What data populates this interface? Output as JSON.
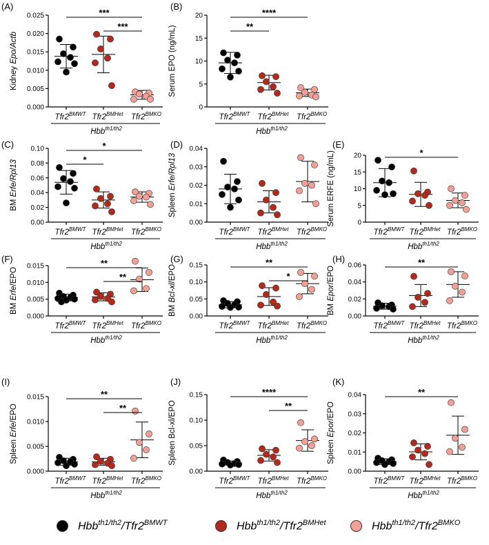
{
  "group_colors": [
    "#000000",
    "#b22a1c",
    "#f2a095"
  ],
  "chart_data": [
    {
      "panel": "A",
      "type": "scatter",
      "ylabel": "Kidney Epo/Actb",
      "ylabel_plain": "Kidney ",
      "ylabel_italic": "Epo/Actb",
      "ylabel_rest": "",
      "ylim": [
        0,
        0.025
      ],
      "yticks": [
        "0.000",
        "0.005",
        "0.010",
        "0.015",
        "0.020",
        "0.025"
      ],
      "groups": [
        {
          "name": "Tfr2BMWT",
          "mean": 0.0138,
          "sd": 0.0032,
          "points": [
            0.0185,
            0.0163,
            0.0145,
            0.0135,
            0.0123,
            0.0118,
            0.0095
          ]
        },
        {
          "name": "Tfr2BMHet",
          "mean": 0.0143,
          "sd": 0.005,
          "points": [
            0.0198,
            0.0185,
            0.0158,
            0.0133,
            0.012,
            0.0058
          ]
        },
        {
          "name": "Tfr2BMKO",
          "mean": 0.0033,
          "sd": 0.0012,
          "points": [
            0.0041,
            0.0038,
            0.0035,
            0.0029,
            0.0021,
            0.0021
          ]
        }
      ],
      "sig": [
        {
          "label": "***",
          "from": 0,
          "to": 2,
          "level": 0
        },
        {
          "label": "***",
          "from": 1,
          "to": 2,
          "level": 1
        }
      ]
    },
    {
      "panel": "B",
      "type": "scatter",
      "ylabel": "Serum EPO (ng/mL)",
      "ylabel_plain": "Serum EPO (ng/mL)",
      "ylabel_italic": "",
      "ylabel_rest": "",
      "ylim": [
        0,
        20
      ],
      "yticks": [
        "0",
        "5",
        "10",
        "15",
        "20"
      ],
      "groups": [
        {
          "name": "Tfr2BMWT",
          "mean": 9.6,
          "sd": 2.3,
          "points": [
            11.8,
            11.3,
            10.2,
            9.6,
            8.3,
            7.8,
            6.5
          ]
        },
        {
          "name": "Tfr2BMHet",
          "mean": 5.3,
          "sd": 1.6,
          "points": [
            6.8,
            6.6,
            5.5,
            4.4,
            3.8,
            3.0
          ]
        },
        {
          "name": "Tfr2BMKO",
          "mean": 3.1,
          "sd": 0.8,
          "points": [
            4.2,
            3.8,
            3.2,
            2.6,
            2.4,
            2.2
          ]
        }
      ],
      "sig": [
        {
          "label": "****",
          "from": 0,
          "to": 2,
          "level": 0
        },
        {
          "label": "**",
          "from": 0,
          "to": 1,
          "level": 1
        }
      ]
    },
    {
      "panel": "C",
      "type": "scatter",
      "ylabel": "BM Erfe/Rpl13",
      "ylabel_plain": "BM ",
      "ylabel_italic": "Erfe/Rpl13",
      "ylabel_rest": "",
      "ylim": [
        0,
        0.1
      ],
      "yticks": [
        "0.00",
        "0.02",
        "0.04",
        "0.06",
        "0.08",
        "0.10"
      ],
      "groups": [
        {
          "name": "Tfr2BMWT",
          "mean": 0.054,
          "sd": 0.016,
          "points": [
            0.074,
            0.066,
            0.059,
            0.055,
            0.048,
            0.046,
            0.026
          ]
        },
        {
          "name": "Tfr2BMHet",
          "mean": 0.03,
          "sd": 0.011,
          "points": [
            0.045,
            0.035,
            0.032,
            0.025,
            0.022,
            0.014
          ]
        },
        {
          "name": "Tfr2BMKO",
          "mean": 0.034,
          "sd": 0.007,
          "points": [
            0.041,
            0.039,
            0.035,
            0.034,
            0.029,
            0.024
          ]
        }
      ],
      "sig": [
        {
          "label": "*",
          "from": 0,
          "to": 2,
          "level": 0
        },
        {
          "label": "*",
          "from": 0,
          "to": 1,
          "level": 1
        }
      ]
    },
    {
      "panel": "D",
      "type": "scatter",
      "ylabel": "Spleen Erfe/Rpl13",
      "ylabel_plain": "Spleen ",
      "ylabel_italic": "Erfe/Rpl13",
      "ylabel_rest": "",
      "ylim": [
        0,
        0.04
      ],
      "yticks": [
        "0.00",
        "0.01",
        "0.02",
        "0.03",
        "0.04"
      ],
      "groups": [
        {
          "name": "Tfr2BMWT",
          "mean": 0.018,
          "sd": 0.008,
          "points": [
            0.033,
            0.022,
            0.019,
            0.018,
            0.015,
            0.012,
            0.008
          ]
        },
        {
          "name": "Tfr2BMHet",
          "mean": 0.011,
          "sd": 0.006,
          "points": [
            0.021,
            0.016,
            0.012,
            0.008,
            0.005,
            0.004
          ]
        },
        {
          "name": "Tfr2BMKO",
          "mean": 0.022,
          "sd": 0.011,
          "points": [
            0.035,
            0.031,
            0.021,
            0.02,
            0.017,
            0.01
          ]
        }
      ],
      "sig": []
    },
    {
      "panel": "E",
      "type": "scatter",
      "ylabel": "Serum ERFE (ng/mL)",
      "ylabel_plain": "Serum ERFE (ng/mL)",
      "ylabel_italic": "",
      "ylabel_rest": "",
      "ylim": [
        0,
        20
      ],
      "yticks": [
        "0",
        "5",
        "10",
        "15",
        "20"
      ],
      "groups": [
        {
          "name": "Tfr2BMWT",
          "mean": 11.8,
          "sd": 4.2,
          "points": [
            18.5,
            16.5,
            12.3,
            11.8,
            9.5,
            8.5,
            8.2
          ]
        },
        {
          "name": "Tfr2BMHet",
          "mean": 8.3,
          "sd": 3.6,
          "points": [
            15.3,
            9.0,
            8.5,
            8.0,
            6.3,
            5.0
          ]
        },
        {
          "name": "Tfr2BMKO",
          "mean": 6.5,
          "sd": 2.2,
          "points": [
            10.0,
            8.0,
            6.5,
            5.8,
            5.0,
            3.8
          ]
        }
      ],
      "sig": [
        {
          "label": "*",
          "from": 0,
          "to": 2,
          "level": 0
        }
      ]
    },
    {
      "panel": "F",
      "type": "scatter",
      "ylabel": "BM Erfe/EPO",
      "ylabel_plain": "BM ",
      "ylabel_italic": "Erfe",
      "ylabel_rest": "/EPO",
      "ylim": [
        0,
        0.015
      ],
      "yticks": [
        "0.000",
        "0.005",
        "0.010",
        "0.015"
      ],
      "groups": [
        {
          "name": "Tfr2BMWT",
          "mean": 0.0055,
          "sd": 0.001,
          "points": [
            0.0068,
            0.0062,
            0.0058,
            0.0055,
            0.0052,
            0.005,
            0.0047,
            0.0042
          ]
        },
        {
          "name": "Tfr2BMHet",
          "mean": 0.0057,
          "sd": 0.0012,
          "points": [
            0.0071,
            0.0065,
            0.0058,
            0.0052,
            0.0048,
            0.0042
          ]
        },
        {
          "name": "Tfr2BMKO",
          "mean": 0.0108,
          "sd": 0.0035,
          "points": [
            0.0163,
            0.013,
            0.011,
            0.0082,
            0.0075
          ]
        }
      ],
      "sig": [
        {
          "label": "**",
          "from": 0,
          "to": 2,
          "level": 0
        },
        {
          "label": "**",
          "from": 1,
          "to": 2,
          "level": 1
        }
      ]
    },
    {
      "panel": "G",
      "type": "scatter",
      "ylabel": "BM Bcl-xl/EPO",
      "ylabel_plain": "BM ",
      "ylabel_italic": "Bcl-xl",
      "ylabel_rest": "/EPO",
      "ylim": [
        0,
        0.15
      ],
      "yticks": [
        "0.00",
        "0.05",
        "0.10",
        "0.15"
      ],
      "groups": [
        {
          "name": "Tfr2BMWT",
          "mean": 0.033,
          "sd": 0.009,
          "points": [
            0.045,
            0.042,
            0.037,
            0.033,
            0.028,
            0.026,
            0.025
          ]
        },
        {
          "name": "Tfr2BMHet",
          "mean": 0.057,
          "sd": 0.026,
          "points": [
            0.089,
            0.082,
            0.063,
            0.041,
            0.032,
            0.029
          ]
        },
        {
          "name": "Tfr2BMKO",
          "mean": 0.095,
          "sd": 0.03,
          "points": [
            0.128,
            0.117,
            0.095,
            0.078,
            0.057
          ]
        }
      ],
      "sig": [
        {
          "label": "**",
          "from": 0,
          "to": 2,
          "level": 0
        },
        {
          "label": "*",
          "from": 1,
          "to": 2,
          "level": 1
        }
      ]
    },
    {
      "panel": "H",
      "type": "scatter",
      "ylabel": "BM Epor/EPO",
      "ylabel_plain": "BM ",
      "ylabel_italic": "Epor",
      "ylabel_rest": "/EPO",
      "ylim": [
        0,
        0.06
      ],
      "yticks": [
        "0.00",
        "0.02",
        "0.04",
        "0.06"
      ],
      "groups": [
        {
          "name": "Tfr2BMWT",
          "mean": 0.0115,
          "sd": 0.0035,
          "points": [
            0.0155,
            0.013,
            0.012,
            0.011,
            0.009,
            0.008
          ]
        },
        {
          "name": "Tfr2BMHet",
          "mean": 0.024,
          "sd": 0.013,
          "points": [
            0.0465,
            0.0265,
            0.022,
            0.016,
            0.011
          ]
        },
        {
          "name": "Tfr2BMKO",
          "mean": 0.037,
          "sd": 0.015,
          "points": [
            0.052,
            0.047,
            0.035,
            0.028,
            0.018
          ]
        }
      ],
      "sig": [
        {
          "label": "**",
          "from": 0,
          "to": 2,
          "level": 0
        }
      ]
    },
    {
      "panel": "I",
      "type": "scatter",
      "ylabel": "Spleen Erfe/EPO",
      "ylabel_plain": "Spleen ",
      "ylabel_italic": "Erfe",
      "ylabel_rest": "/EPO",
      "ylim": [
        0,
        0.015
      ],
      "yticks": [
        "0.000",
        "0.005",
        "0.010",
        "0.015"
      ],
      "groups": [
        {
          "name": "Tfr2BMWT",
          "mean": 0.0019,
          "sd": 0.0007,
          "points": [
            0.0028,
            0.0024,
            0.0021,
            0.0019,
            0.0017,
            0.0014,
            0.0011
          ]
        },
        {
          "name": "Tfr2BMHet",
          "mean": 0.0019,
          "sd": 0.0007,
          "points": [
            0.0029,
            0.0024,
            0.002,
            0.0016,
            0.0013,
            0.0011
          ]
        },
        {
          "name": "Tfr2BMKO",
          "mean": 0.0063,
          "sd": 0.0036,
          "points": [
            0.0121,
            0.0075,
            0.0058,
            0.0043,
            0.0026
          ]
        }
      ],
      "sig": [
        {
          "label": "**",
          "from": 0,
          "to": 2,
          "level": 0
        },
        {
          "label": "**",
          "from": 1,
          "to": 2,
          "level": 1
        }
      ]
    },
    {
      "panel": "J",
      "type": "scatter",
      "ylabel": "Spleen Bcl-xl/EPO",
      "ylabel_plain": "Spleen Bcl-xl/EPO",
      "ylabel_italic": "",
      "ylabel_rest": "",
      "ylim": [
        0,
        0.15
      ],
      "yticks": [
        "0.00",
        "0.05",
        "0.10",
        "0.15"
      ],
      "groups": [
        {
          "name": "Tfr2BMWT",
          "mean": 0.016,
          "sd": 0.004,
          "points": [
            0.022,
            0.019,
            0.017,
            0.015,
            0.014,
            0.013,
            0.012
          ]
        },
        {
          "name": "Tfr2BMHet",
          "mean": 0.031,
          "sd": 0.011,
          "points": [
            0.044,
            0.041,
            0.033,
            0.028,
            0.021,
            0.017
          ]
        },
        {
          "name": "Tfr2BMKO",
          "mean": 0.06,
          "sd": 0.021,
          "points": [
            0.095,
            0.063,
            0.058,
            0.05,
            0.045
          ]
        }
      ],
      "sig": [
        {
          "label": "****",
          "from": 0,
          "to": 2,
          "level": 0
        },
        {
          "label": "**",
          "from": 1,
          "to": 2,
          "level": 1
        }
      ]
    },
    {
      "panel": "K",
      "type": "scatter",
      "ylabel": "Spleen Epor/EPO",
      "ylabel_plain": "Spleen ",
      "ylabel_italic": "Epor",
      "ylabel_rest": "/EPO",
      "ylim": [
        0,
        0.04
      ],
      "yticks": [
        "0.00",
        "0.01",
        "0.02",
        "0.03",
        "0.04"
      ],
      "groups": [
        {
          "name": "Tfr2BMWT",
          "mean": 0.005,
          "sd": 0.0015,
          "points": [
            0.0068,
            0.006,
            0.0055,
            0.005,
            0.0045,
            0.004,
            0.0035
          ]
        },
        {
          "name": "Tfr2BMHet",
          "mean": 0.0101,
          "sd": 0.0042,
          "points": [
            0.0148,
            0.013,
            0.011,
            0.0092,
            0.0075,
            0.0035
          ]
        },
        {
          "name": "Tfr2BMKO",
          "mean": 0.0188,
          "sd": 0.01,
          "points": [
            0.0358,
            0.0218,
            0.0172,
            0.0125,
            0.0102
          ]
        }
      ],
      "sig": [
        {
          "label": "**",
          "from": 0,
          "to": 2,
          "level": 0
        }
      ]
    }
  ],
  "xaxis": {
    "group_base": "Tfr2",
    "group_sup": [
      "BMWT",
      "BMHet",
      "BMKO"
    ],
    "bracket_base": "Hbb",
    "bracket_sup_normal": "th1/th2",
    "bracket_sup_panels": "th1/th2"
  },
  "legend": {
    "items": [
      {
        "base": "Hbb",
        "sup1": "th1/th2",
        "mid": "/Tfr2",
        "sup2": "BMWT"
      },
      {
        "base": "Hbb",
        "sup1": "th1/th2",
        "mid": "/Tfr2",
        "sup2": "BMHet"
      },
      {
        "base": "Hbb",
        "sup1": "th1/th2",
        "mid": "/Tfr2",
        "sup2": "BMKO"
      }
    ]
  }
}
